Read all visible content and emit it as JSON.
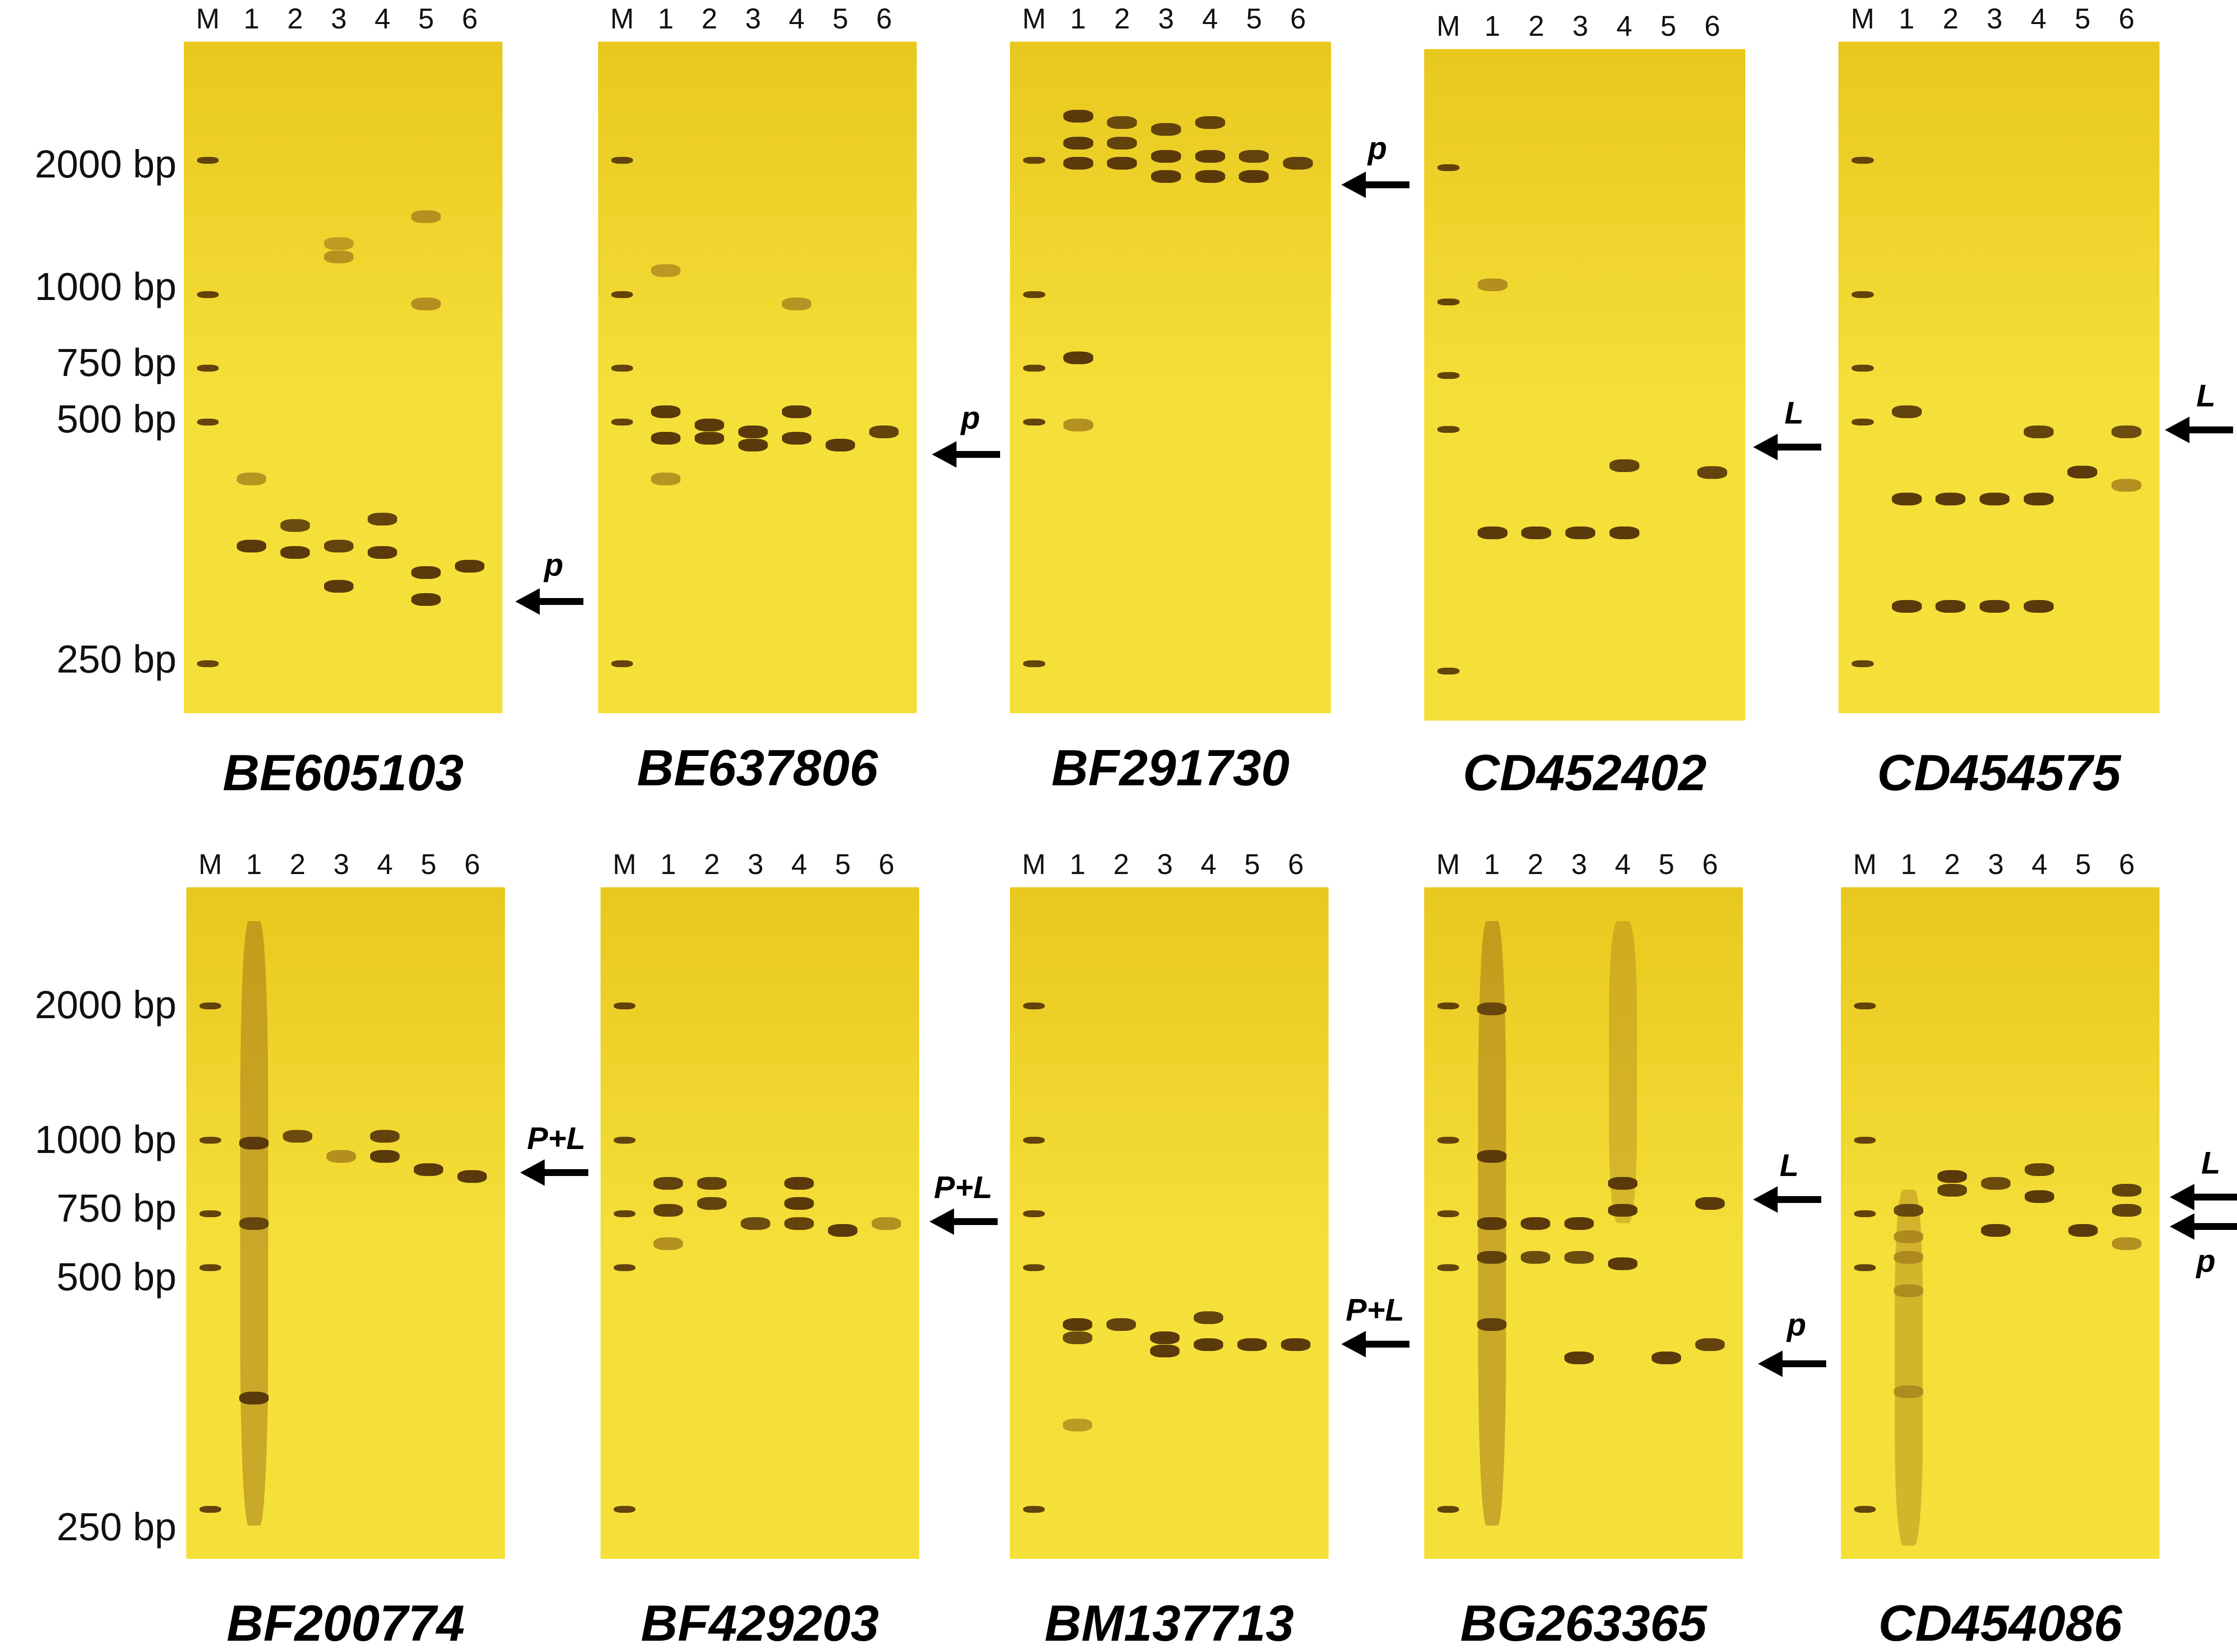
{
  "size_labels_top": [
    "2000 bp",
    "1000 bp",
    "750 bp",
    "500 bp",
    "250 bp"
  ],
  "size_labels_bottom": [
    "2000 bp",
    "1000 bp",
    "750 bp",
    "500 bp",
    "250 bp"
  ],
  "lane_labels": [
    "M",
    "1",
    "2",
    "3",
    "4",
    "5",
    "6"
  ],
  "colors": {
    "gel_light": "#f5e03a",
    "gel_mid": "#e8c81e",
    "band": "#5a3a0a",
    "band_faint": "#a5801c"
  },
  "panels": [
    {
      "name": "BE605103",
      "arrows": [
        {
          "label": "p"
        }
      ]
    },
    {
      "name": "BE637806",
      "arrows": [
        {
          "label": "p"
        }
      ]
    },
    {
      "name": "BF291730",
      "arrows": [
        {
          "label": "p"
        }
      ]
    },
    {
      "name": "CD452402",
      "arrows": [
        {
          "label": "L"
        }
      ]
    },
    {
      "name": "CD454575",
      "arrows": [
        {
          "label": "L"
        }
      ]
    },
    {
      "name": "BF200774",
      "arrows": [
        {
          "label": "P+L"
        }
      ]
    },
    {
      "name": "BF429203",
      "arrows": [
        {
          "label": "P+L"
        }
      ]
    },
    {
      "name": "BM137713",
      "arrows": [
        {
          "label": "P+L"
        }
      ]
    },
    {
      "name": "BG263365",
      "arrows": [
        {
          "label": "L"
        },
        {
          "label": "p"
        }
      ]
    },
    {
      "name": "CD454086",
      "arrows": [
        {
          "label": "L"
        },
        {
          "label": "p"
        }
      ]
    }
  ]
}
